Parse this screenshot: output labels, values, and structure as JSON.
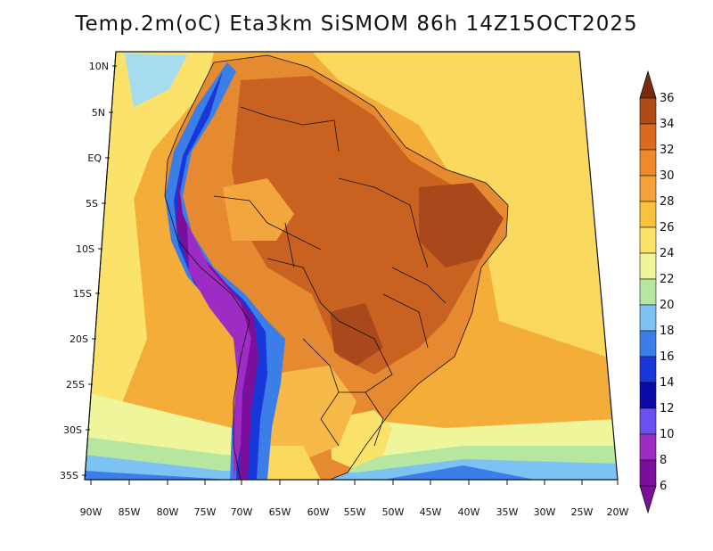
{
  "title": "Temp.2m(oC) Eta3km SiSMOM 86h 14Z15OCT2025",
  "map": {
    "lat_labels": [
      "10N",
      "5N",
      "EQ",
      "5S",
      "10S",
      "15S",
      "20S",
      "25S",
      "30S",
      "35S"
    ],
    "lon_labels": [
      "90W",
      "85W",
      "80W",
      "75W",
      "70W",
      "65W",
      "60W",
      "55W",
      "50W",
      "45W",
      "40W",
      "35W",
      "30W",
      "25W",
      "20W"
    ]
  },
  "colorbar": {
    "levels": [
      "6",
      "8",
      "10",
      "12",
      "14",
      "16",
      "18",
      "20",
      "22",
      "24",
      "26",
      "28",
      "30",
      "32",
      "34",
      "36"
    ],
    "colors": [
      "#7a0f9c",
      "#9d2cc4",
      "#6b4ff0",
      "#0a0aa8",
      "#1737d8",
      "#3c7ee8",
      "#7cc2f2",
      "#b6e6a0",
      "#eef59a",
      "#fbe36b",
      "#f8c33c",
      "#f4a13a",
      "#ef8a2c",
      "#d96a1f",
      "#b04a16",
      "#7a2a10"
    ]
  }
}
